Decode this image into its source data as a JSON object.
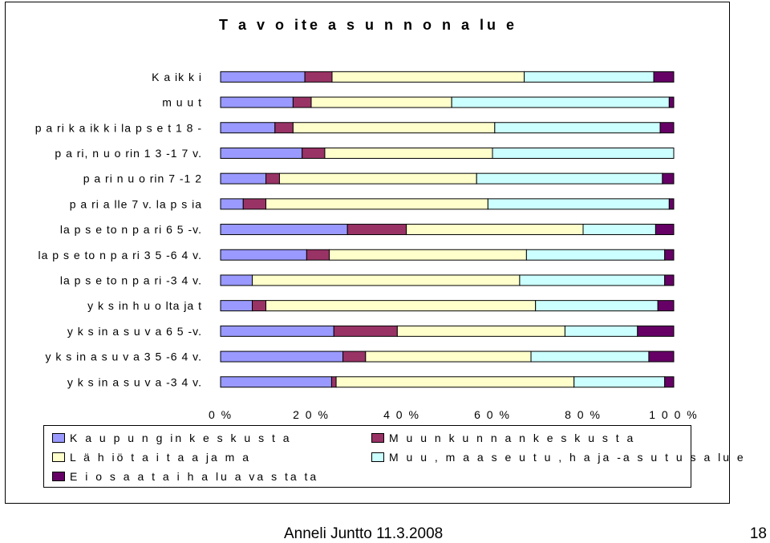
{
  "chart_data": {
    "type": "bar",
    "orientation": "horizontal",
    "stacked": "percent",
    "title": "T a v o ite a s u n n o n  a lu e",
    "categories": [
      "K a ik k i",
      "m u u t",
      "p a ri k a ik k i la p s e t 1 8 -",
      "p a ri,  n u o rin  1 3 -1 7  v.",
      "p a ri n u o rin  7 -1 2",
      "p a ri a lle  7  v.  la p s ia",
      "la p s e to n  p a ri 6 5 -v.",
      "la p s e to n  p a ri 3 5 -6 4 v.",
      "la p s e to n  p a ri -3 4  v.",
      "y k s in h u o lta ja t",
      "y k s in  a s u v a  6 5 -v.",
      "y k s in  a s u v a  3 5 -6 4 v.",
      "y k s in  a s u v a  -3 4  v."
    ],
    "series": [
      {
        "name": "K a u p u n g in  k e s k u s t a",
        "color": "#9999ff",
        "values": [
          18.6,
          16,
          12,
          18,
          10,
          5,
          28,
          19,
          7,
          7,
          25,
          27,
          24.5
        ]
      },
      {
        "name": "M u u n  k u n n a n  k e s k u s t a",
        "color": "#993366",
        "values": [
          6,
          4,
          4,
          5,
          3,
          5,
          13,
          5,
          0,
          3,
          14,
          5,
          1
        ]
      },
      {
        "name": "L ä h iö  t a i  t a a ja m a",
        "color": "#ffffcc",
        "values": [
          42.4,
          31,
          44.5,
          37,
          43.5,
          49,
          39,
          43.5,
          59,
          59.5,
          37,
          36.5,
          52.5
        ]
      },
      {
        "name": "M u u ,  m a a s e u t u ,  h a ja -a s u t u s a lu e",
        "color": "#ccffff",
        "values": [
          28.6,
          48,
          36.5,
          40,
          41,
          40,
          16,
          30.5,
          32,
          27,
          16,
          26,
          20
        ]
      },
      {
        "name": "E i o s a a  t a i h a lu a  va s ta ta",
        "color": "#660066",
        "values": [
          4.4,
          1,
          3,
          0,
          2.5,
          1,
          4,
          2,
          2,
          3.5,
          8,
          5.5,
          2
        ]
      }
    ],
    "x_ticks": [
      "0  %",
      "2 0  %",
      "4 0  %",
      "6 0  %",
      "8 0  %",
      "1 0 0  %"
    ],
    "xlim": [
      0,
      100
    ],
    "grid": false,
    "legend_position": "bottom"
  },
  "footer": {
    "author": "Anneli Juntto 11.3.2008",
    "page": "18"
  }
}
